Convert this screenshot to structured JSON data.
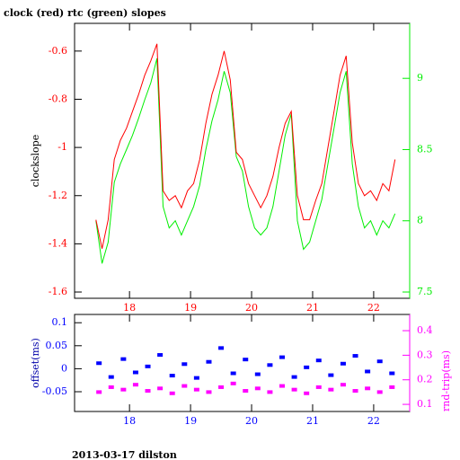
{
  "chart_data": [
    {
      "type": "line",
      "title": "clock (red) rtc (green) slopes",
      "ylabel": "clockslope",
      "x": [
        17.45,
        17.55,
        17.65,
        17.75,
        17.85,
        17.95,
        18.05,
        18.15,
        18.25,
        18.35,
        18.45,
        18.55,
        18.65,
        18.75,
        18.85,
        18.95,
        19.05,
        19.15,
        19.25,
        19.35,
        19.45,
        19.55,
        19.65,
        19.75,
        19.85,
        19.95,
        20.05,
        20.15,
        20.25,
        20.35,
        20.45,
        20.55,
        20.65,
        20.75,
        20.85,
        20.95,
        21.05,
        21.15,
        21.25,
        21.35,
        21.45,
        21.55,
        21.65,
        21.75,
        21.85,
        21.95,
        22.05,
        22.15,
        22.25,
        22.35
      ],
      "series": [
        {
          "color": "#ff0000",
          "values": [
            -1.3,
            -1.42,
            -1.3,
            -1.05,
            -0.97,
            -0.92,
            -0.85,
            -0.78,
            -0.7,
            -0.64,
            -0.57,
            -1.18,
            -1.22,
            -1.2,
            -1.25,
            -1.18,
            -1.15,
            -1.05,
            -0.9,
            -0.78,
            -0.7,
            -0.6,
            -0.72,
            -1.02,
            -1.05,
            -1.15,
            -1.2,
            -1.25,
            -1.2,
            -1.12,
            -1.0,
            -0.9,
            -0.85,
            -1.2,
            -1.3,
            -1.3,
            -1.22,
            -1.15,
            -1.0,
            -0.85,
            -0.7,
            -0.62,
            -0.98,
            -1.15,
            -1.2,
            -1.18,
            -1.22,
            -1.15,
            -1.18,
            -1.05
          ]
        },
        {
          "color": "#00ee00",
          "axis": "y2",
          "values": [
            8.0,
            7.7,
            7.85,
            8.27,
            8.4,
            8.5,
            8.6,
            8.72,
            8.85,
            8.97,
            9.14,
            8.1,
            7.95,
            8.0,
            7.9,
            8.0,
            8.1,
            8.25,
            8.5,
            8.7,
            8.85,
            9.05,
            8.9,
            8.45,
            8.35,
            8.1,
            7.95,
            7.9,
            7.95,
            8.1,
            8.35,
            8.6,
            8.75,
            8.0,
            7.8,
            7.85,
            8.0,
            8.15,
            8.4,
            8.65,
            8.9,
            9.05,
            8.4,
            8.1,
            7.95,
            8.0,
            7.9,
            8.0,
            7.95,
            8.05
          ]
        }
      ],
      "xlim": [
        17.1,
        22.59
      ],
      "xticks": [
        18,
        19,
        20,
        21,
        22
      ],
      "ylim": [
        -1.626,
        -0.485
      ],
      "yticks": [
        -1.6,
        -1.4,
        -1.2,
        -1,
        -0.8,
        -0.6
      ],
      "y2lim": [
        7.456,
        9.386
      ],
      "y2ticks": [
        7.5,
        8,
        8.5,
        9
      ],
      "xtick_color": "#ff0000",
      "ytick_color": "#ff0000",
      "y2tick_color": "#00ee00",
      "y2axis_color": "#00ee00",
      "ylabel_color": "#000000"
    },
    {
      "type": "scatter",
      "ylabel": "offset(ms)",
      "y2label": "rnd-trip(ms)",
      "x": [
        17.5,
        17.7,
        17.9,
        18.1,
        18.3,
        18.5,
        18.7,
        18.9,
        19.1,
        19.3,
        19.5,
        19.7,
        19.9,
        20.1,
        20.3,
        20.5,
        20.7,
        20.9,
        21.1,
        21.3,
        21.5,
        21.7,
        21.9,
        22.1,
        22.3
      ],
      "series": [
        {
          "color": "#0000ff",
          "values": [
            0.012,
            -0.018,
            0.021,
            -0.008,
            0.005,
            0.03,
            -0.015,
            0.01,
            -0.02,
            0.015,
            0.045,
            -0.01,
            0.02,
            -0.012,
            0.008,
            0.025,
            -0.018,
            0.003,
            0.018,
            -0.014,
            0.011,
            0.028,
            -0.006,
            0.016,
            -0.01
          ]
        },
        {
          "color": "#ff00ff",
          "axis": "y2",
          "values": [
            0.15,
            0.17,
            0.16,
            0.18,
            0.155,
            0.165,
            0.145,
            0.175,
            0.16,
            0.15,
            0.17,
            0.185,
            0.155,
            0.165,
            0.15,
            0.175,
            0.16,
            0.145,
            0.17,
            0.16,
            0.18,
            0.155,
            0.165,
            0.15,
            0.17
          ]
        }
      ],
      "xlim": [
        17.1,
        22.59
      ],
      "xticks": [
        18,
        19,
        20,
        21,
        22
      ],
      "ylim": [
        -0.093,
        0.118
      ],
      "yticks": [
        -0.05,
        0,
        0.05,
        0.1
      ],
      "y2lim": [
        0.071,
        0.466
      ],
      "y2ticks": [
        0.1,
        0.2,
        0.3,
        0.4
      ],
      "xtick_color": "#0000ff",
      "ytick_color": "#0000ff",
      "y2tick_color": "#ff00ff",
      "y2axis_color": "#ff00ff",
      "ylabel_color": "#0000aa",
      "y2label_color": "#ff00ff"
    }
  ],
  "footer": "2013-03-17 dilston"
}
